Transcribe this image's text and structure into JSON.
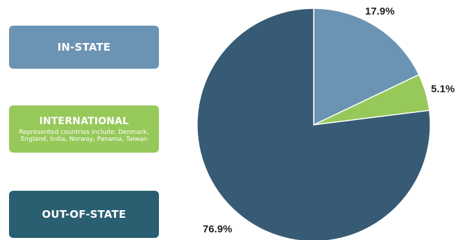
{
  "chart_data": {
    "type": "pie",
    "start_angle_deg": 0,
    "direction": "clockwise",
    "slices": [
      {
        "name": "IN-STATE",
        "value": 17.9,
        "label": "17.9%",
        "color": "#6b93b3",
        "note": ""
      },
      {
        "name": "INTERNATIONAL",
        "value": 5.1,
        "label": "5.1%",
        "color": "#96c95a",
        "note": "Represented countries include: Denmark, England, India, Norway, Panama, Taiwan"
      },
      {
        "name": "OUT-OF-STATE",
        "value": 76.9,
        "label": "76.9%",
        "color": "#375a75",
        "note": ""
      }
    ],
    "legend_colors": [
      "#6b93b3",
      "#96c95a",
      "#2a5f72"
    ],
    "legend_placement": "left"
  }
}
